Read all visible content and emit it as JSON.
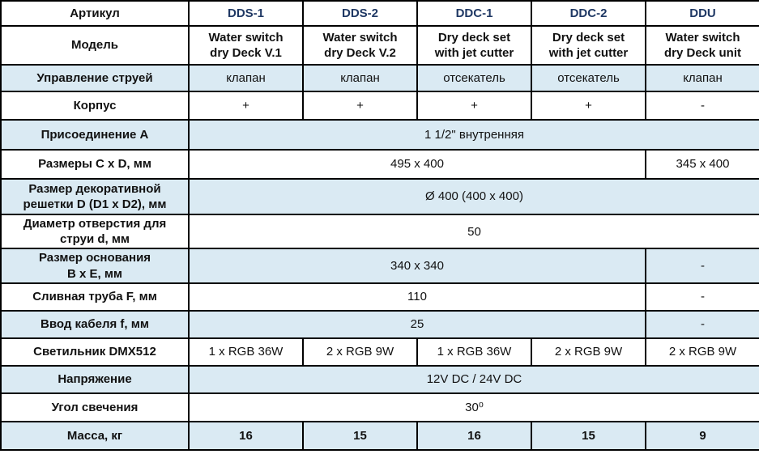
{
  "colors": {
    "alt_row_bg": "#daeaf3",
    "header_text": "#1f3864",
    "body_text": "#111111",
    "border": "#000000",
    "page_bg": "#ffffff"
  },
  "table": {
    "header": {
      "label": "Артикул",
      "columns": [
        "DDS-1",
        "DDS-2",
        "DDC-1",
        "DDC-2",
        "DDU"
      ]
    },
    "rows": [
      {
        "label": "Модель",
        "cells": [
          "Water switch\ndry Deck V.1",
          "Water switch\ndry Deck V.2",
          "Dry deck set\nwith jet cutter",
          "Dry deck set\nwith jet cutter",
          "Water switch\ndry Deck unit"
        ]
      },
      {
        "label": "Управление струей",
        "cells": [
          "клапан",
          "клапан",
          "отсекатель",
          "отсекатель",
          "клапан"
        ]
      },
      {
        "label": "Корпус",
        "cells": [
          "+",
          "+",
          "+",
          "+",
          "-"
        ]
      },
      {
        "label": "Присоединение А",
        "span_all": "1 1/2\" внутренняя"
      },
      {
        "label": "Размеры C x D, мм",
        "span4": "495 x 400",
        "last": "345 x 400"
      },
      {
        "label": "Размер декоративной\nрешетки D (D1 x D2), мм",
        "span_all": "Ø 400 (400 x 400)"
      },
      {
        "label": "Диаметр отверстия для\nструи d, мм",
        "span_all": "50"
      },
      {
        "label": "Размер основания\nB x E, мм",
        "span4": "340 x 340",
        "last": "-"
      },
      {
        "label": "Сливная труба F, мм",
        "span4": "110",
        "last": "-"
      },
      {
        "label": "Ввод кабеля f, мм",
        "span4": "25",
        "last": "-"
      },
      {
        "label": "Светильник DMX512",
        "cells": [
          "1 x RGB 36W",
          "2 x RGB 9W",
          "1 x RGB 36W",
          "2 x RGB 9W",
          "2 x RGB 9W"
        ]
      },
      {
        "label": "Напряжение",
        "span_all": "12V DC / 24V DC"
      },
      {
        "label": "Угол свечения",
        "span_all": "30⁰"
      },
      {
        "label": "Масса, кг",
        "cells": [
          "16",
          "15",
          "16",
          "15",
          "9"
        ]
      }
    ]
  }
}
